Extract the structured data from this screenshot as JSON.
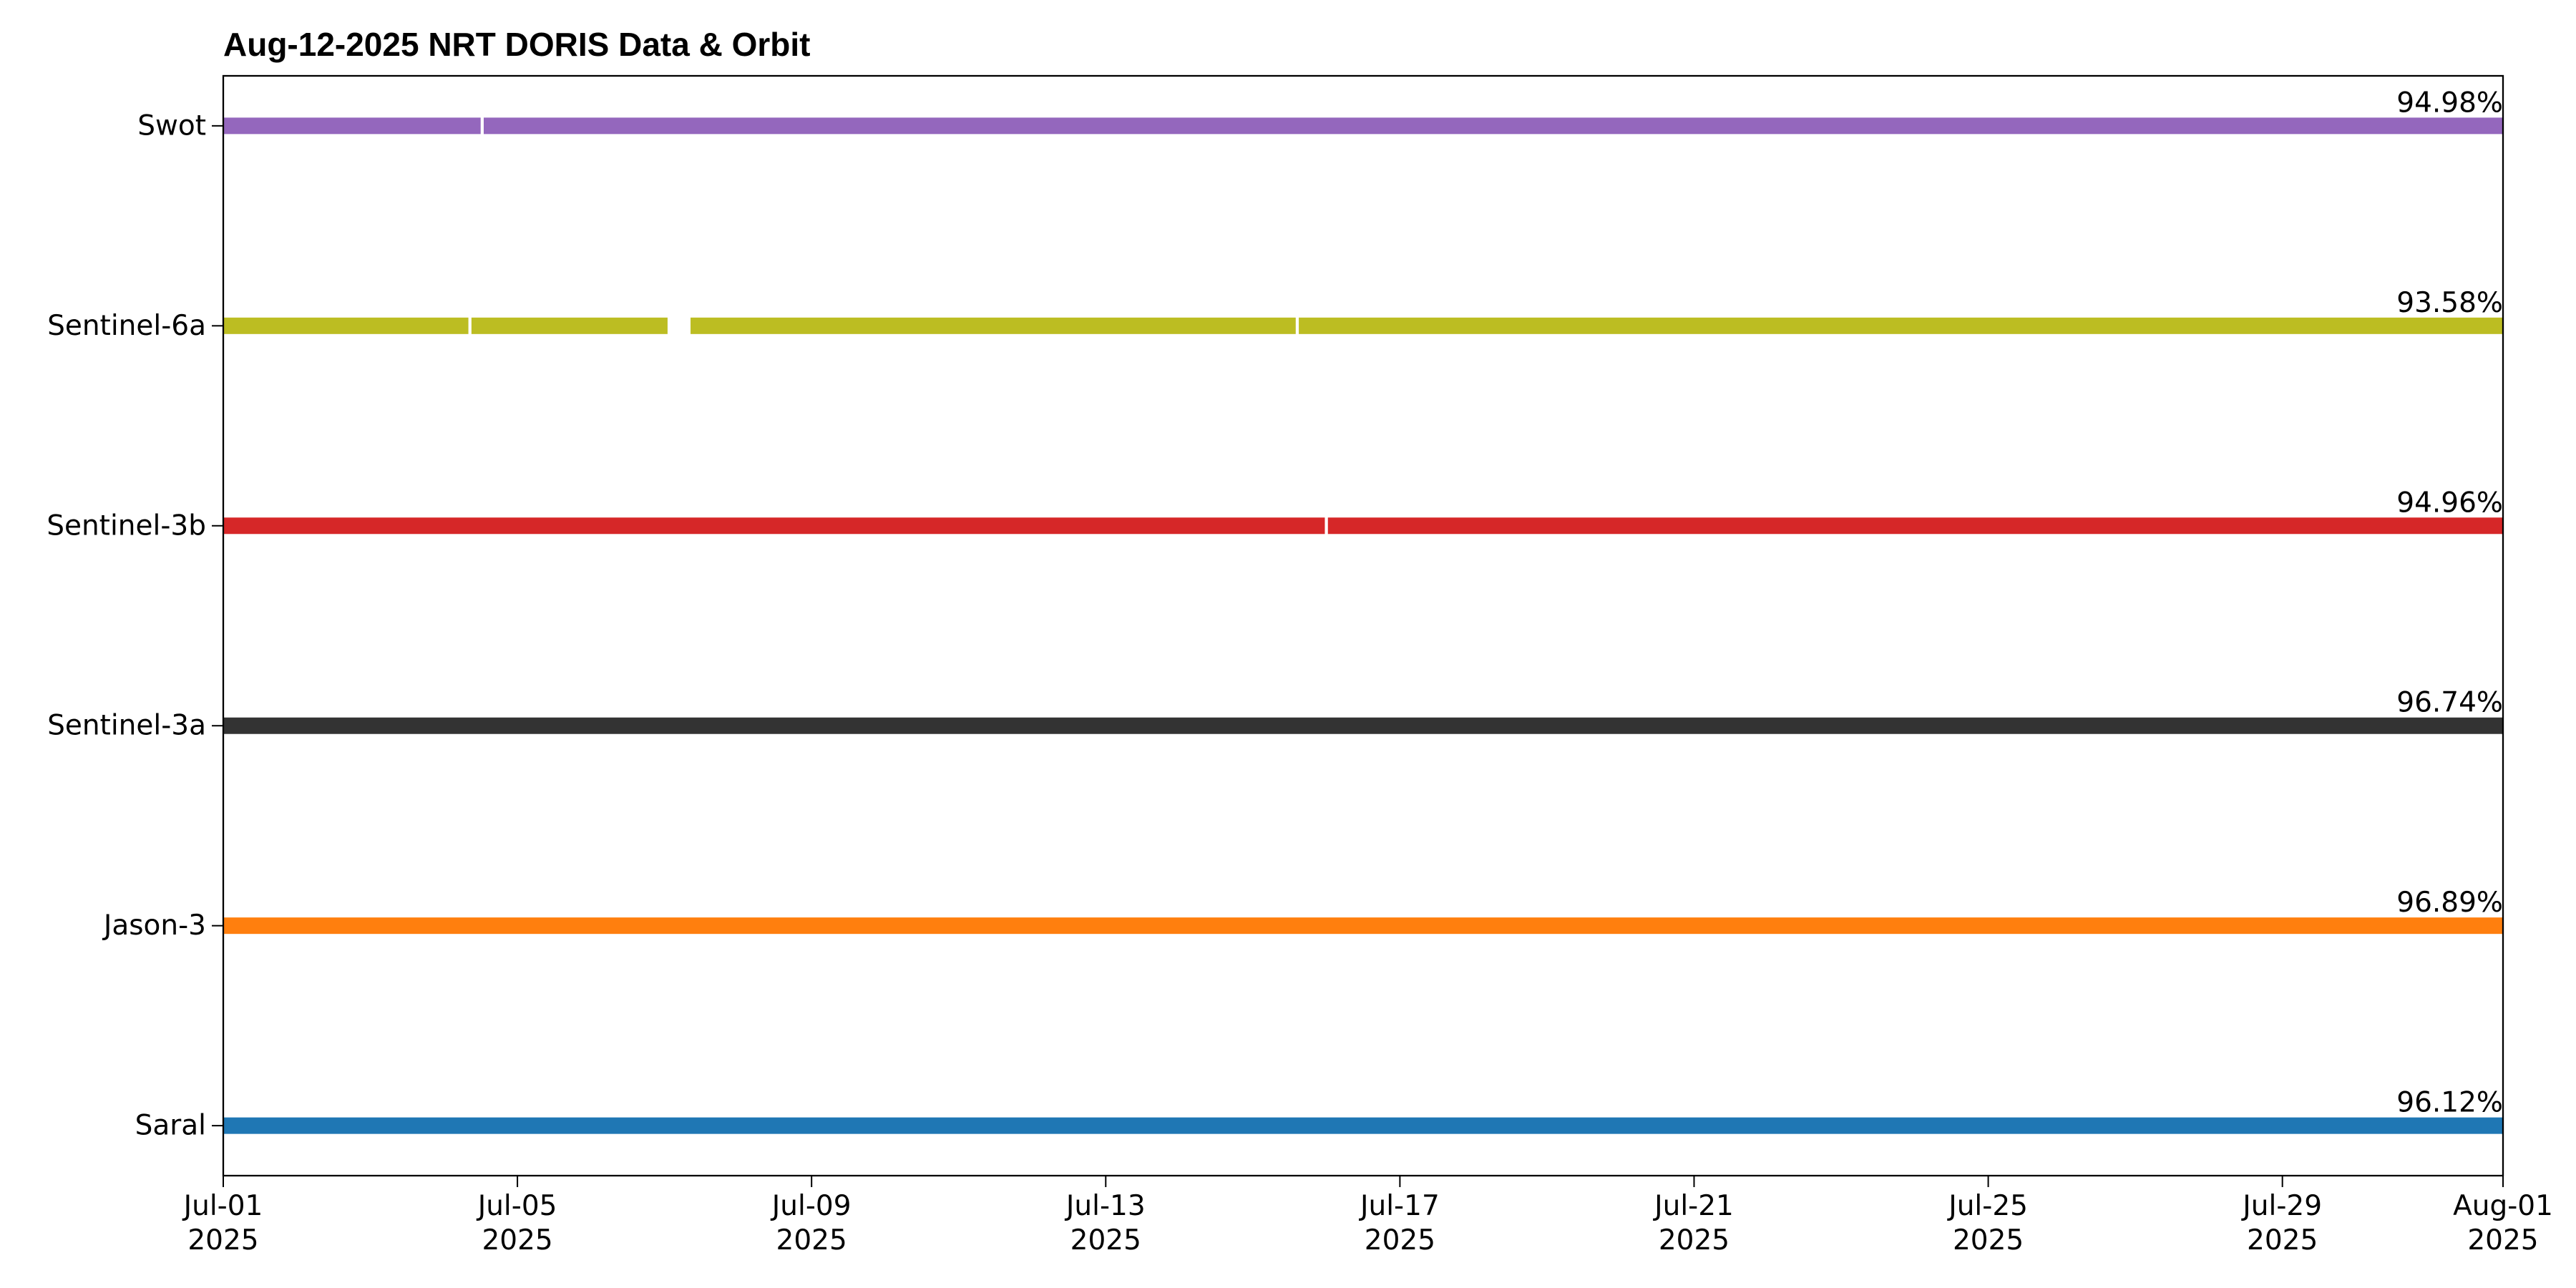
{
  "chart_data": {
    "type": "timeline",
    "title": "Aug-12-2025 NRT DORIS Data & Orbit",
    "series": [
      {
        "name": "Swot",
        "color": "#9467bd",
        "segments": [
          [
            "2025-07-01",
            "2025-07-04T12:00"
          ],
          [
            "2025-07-04T13:00",
            "2025-08-01"
          ]
        ]
      },
      {
        "name": "Sentinel-6a",
        "color": "#bcbd22",
        "segments": [
          [
            "2025-07-01",
            "2025-07-04T08:00"
          ],
          [
            "2025-07-04T09:00",
            "2025-07-07T01:00"
          ],
          [
            "2025-07-07T08:30",
            "2025-07-15T14:00"
          ],
          [
            "2025-07-15T15:00",
            "2025-08-01"
          ]
        ]
      },
      {
        "name": "Sentinel-3b",
        "color": "#d62728",
        "segments": [
          [
            "2025-07-01",
            "2025-07-15T23:30"
          ],
          [
            "2025-07-16T00:30",
            "2025-08-01"
          ]
        ]
      },
      {
        "name": "Sentinel-3a",
        "color": "#333333",
        "segments": [
          [
            "2025-07-01",
            "2025-08-01"
          ]
        ]
      },
      {
        "name": "Jason-3",
        "color": "#ff7f0e",
        "segments": [
          [
            "2025-07-01",
            "2025-08-01"
          ]
        ]
      },
      {
        "name": "Saral",
        "color": "#1f77b4",
        "segments": [
          [
            "2025-07-01",
            "2025-08-01"
          ]
        ]
      }
    ],
    "values": [
      94.98,
      93.58,
      94.96,
      96.74,
      96.89,
      96.12
    ],
    "value_labels": [
      "94.98%",
      "93.58%",
      "94.96%",
      "96.74%",
      "96.89%",
      "96.12%"
    ],
    "xlim": [
      "2025-07-01",
      "2025-08-01"
    ],
    "xticks": [
      {
        "value": "2025-07-01",
        "label": "Jul-01\n2025"
      },
      {
        "value": "2025-07-05",
        "label": "Jul-05\n2025"
      },
      {
        "value": "2025-07-09",
        "label": "Jul-09\n2025"
      },
      {
        "value": "2025-07-13",
        "label": "Jul-13\n2025"
      },
      {
        "value": "2025-07-17",
        "label": "Jul-17\n2025"
      },
      {
        "value": "2025-07-21",
        "label": "Jul-21\n2025"
      },
      {
        "value": "2025-07-25",
        "label": "Jul-25\n2025"
      },
      {
        "value": "2025-07-29",
        "label": "Jul-29\n2025"
      },
      {
        "value": "2025-08-01",
        "label": "Aug-01\n2025"
      }
    ]
  }
}
